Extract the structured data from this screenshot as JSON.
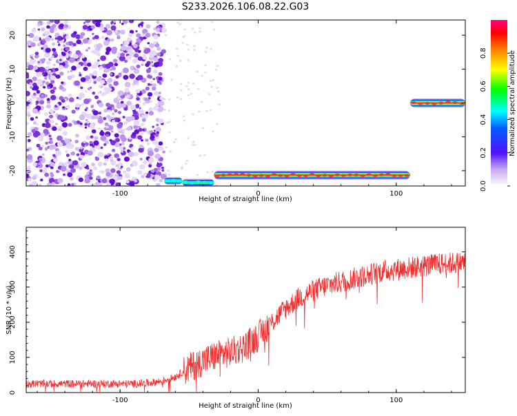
{
  "title": "S233.2026.106.08.22.G03",
  "chart_data": [
    {
      "type": "heatmap",
      "xlabel": "Height of straight line (km)",
      "ylabel": "Frequency (Hz)",
      "xlim": [
        -168,
        150
      ],
      "ylim": [
        -24.5,
        24.5
      ],
      "xticks": [
        -100,
        0,
        100
      ],
      "yticks": [
        -20,
        -10,
        0,
        10,
        20
      ],
      "colorbar": {
        "label": "Normalized spectral amplitude",
        "range": [
          0,
          1
        ],
        "ticks": [
          "0.0",
          "0.2",
          "0.4",
          "0.6",
          "0.8"
        ],
        "colors": [
          "#ffffff",
          "#a070e0",
          "#2020ff",
          "#00ffff",
          "#00ff00",
          "#ffff00",
          "#ff8000",
          "#ff0000",
          "#ff00a0"
        ]
      },
      "noise_region": {
        "x_from": -168,
        "x_to": -68,
        "freq_from": -24.5,
        "freq_to": 24.5,
        "amplitude": 0.15
      },
      "ridges": [
        {
          "x_from": -68,
          "x_to": -55,
          "freq": -23,
          "amplitude": 0.35
        },
        {
          "x_from": -55,
          "x_to": -32,
          "freq": -23.5,
          "amplitude": 0.4
        },
        {
          "x_from": -32,
          "x_to": 110,
          "freq": -21.3,
          "amplitude": 0.85
        },
        {
          "x_from": 110,
          "x_to": 150,
          "freq": 0,
          "amplitude": 0.85
        }
      ],
      "grid": false
    },
    {
      "type": "line",
      "xlabel": "Height of straight line (km)",
      "ylabel": "SNR (10 * v/v)",
      "xlim": [
        -168,
        150
      ],
      "ylim": [
        0,
        470
      ],
      "xticks": [
        -100,
        0,
        100
      ],
      "yticks": [
        0,
        100,
        200,
        300,
        400
      ],
      "color": "#ee3030",
      "series": [
        {
          "x": [
            -168,
            -150,
            -130,
            -110,
            -90,
            -80,
            -70,
            -60,
            -50,
            -40,
            -30,
            -20,
            -10,
            0,
            10,
            20,
            30,
            40,
            50,
            60,
            70,
            80,
            90,
            100,
            110,
            120,
            130,
            140,
            150
          ],
          "values": [
            25,
            25,
            25,
            25,
            25,
            27,
            32,
            45,
            70,
            90,
            105,
            115,
            130,
            160,
            200,
            240,
            270,
            290,
            305,
            315,
            325,
            335,
            345,
            350,
            355,
            360,
            365,
            368,
            370
          ]
        }
      ],
      "grid": false
    }
  ]
}
